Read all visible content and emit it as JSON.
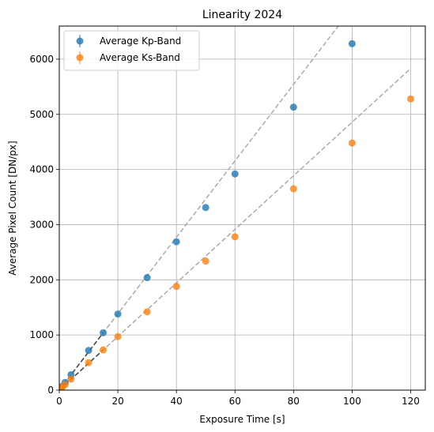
{
  "chart_data": {
    "type": "scatter",
    "title": "Linearity 2024",
    "xlabel": "Exposure Time [s]",
    "ylabel": "Average Pixel Count [DN/px]",
    "xlim": [
      0,
      125
    ],
    "ylim": [
      0,
      6600
    ],
    "xticks": [
      0,
      20,
      40,
      60,
      80,
      100,
      120
    ],
    "yticks": [
      0,
      1000,
      2000,
      3000,
      4000,
      5000,
      6000
    ],
    "grid": true,
    "legend_position": "top-left",
    "series": [
      {
        "name": "Average Kp-Band",
        "color": "#1f77b4",
        "x": [
          0.5,
          1,
          2,
          4,
          10,
          15,
          20,
          30,
          40,
          50,
          60,
          80,
          100
        ],
        "y": [
          35,
          70,
          140,
          280,
          720,
          1040,
          1380,
          2040,
          2690,
          3310,
          3920,
          5130,
          6280
        ]
      },
      {
        "name": "Average Ks-Band",
        "color": "#ff7f0e",
        "x": [
          0.5,
          1,
          2,
          4,
          10,
          15,
          20,
          30,
          40,
          50,
          60,
          80,
          100,
          120
        ],
        "y": [
          25,
          50,
          100,
          200,
          500,
          730,
          970,
          1420,
          1880,
          2340,
          2780,
          3650,
          4480,
          5280
        ]
      }
    ],
    "fit_lines": [
      {
        "color": "#aaaaaa",
        "x": [
          0,
          96
        ],
        "y": [
          0,
          6650
        ]
      },
      {
        "color": "#aaaaaa",
        "x": [
          0,
          120
        ],
        "y": [
          0,
          5830
        ]
      },
      {
        "color": "#444444",
        "x": [
          0,
          15
        ],
        "y": [
          0,
          1040
        ]
      },
      {
        "color": "#444444",
        "x": [
          0,
          15
        ],
        "y": [
          0,
          730
        ]
      }
    ]
  }
}
